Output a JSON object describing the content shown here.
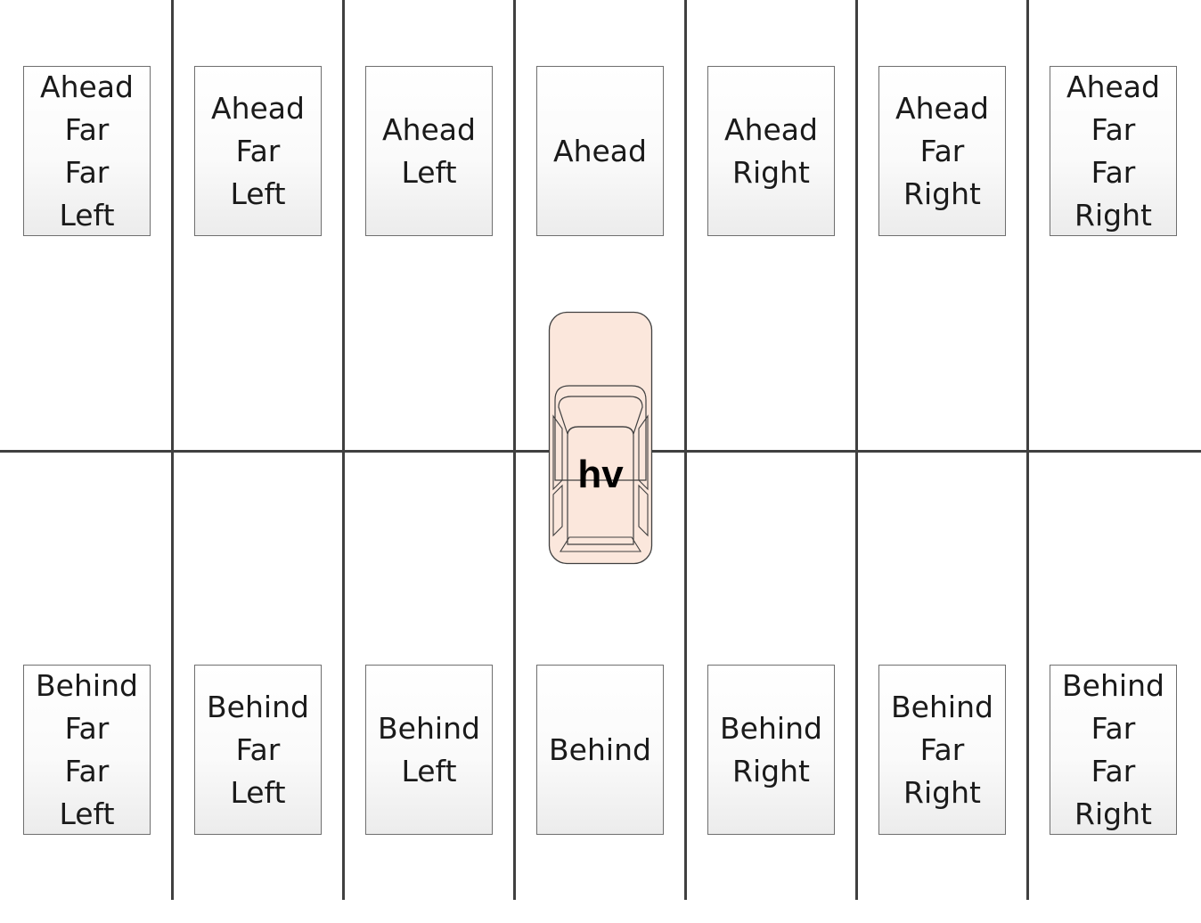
{
  "ahead_zones": [
    {
      "lines": [
        "Ahead",
        "Far",
        "Far",
        "Left"
      ]
    },
    {
      "lines": [
        "Ahead",
        "Far",
        "Left"
      ]
    },
    {
      "lines": [
        "Ahead",
        "Left"
      ]
    },
    {
      "lines": [
        "Ahead"
      ]
    },
    {
      "lines": [
        "Ahead",
        "Right"
      ]
    },
    {
      "lines": [
        "Ahead",
        "Far",
        "Right"
      ]
    },
    {
      "lines": [
        "Ahead",
        "Far",
        "Far",
        "Right"
      ]
    }
  ],
  "behind_zones": [
    {
      "lines": [
        "Behind",
        "Far",
        "Far",
        "Left"
      ]
    },
    {
      "lines": [
        "Behind",
        "Far",
        "Left"
      ]
    },
    {
      "lines": [
        "Behind",
        "Left"
      ]
    },
    {
      "lines": [
        "Behind"
      ]
    },
    {
      "lines": [
        "Behind",
        "Right"
      ]
    },
    {
      "lines": [
        "Behind",
        "Far",
        "Right"
      ]
    },
    {
      "lines": [
        "Behind",
        "Far",
        "Far",
        "Right"
      ]
    }
  ],
  "host_vehicle": {
    "label": "hv",
    "fill_color": "#fbe7dc",
    "stroke_color": "#404040"
  },
  "colors": {
    "lane_line": "#404040",
    "box_border": "#6f6f6f"
  }
}
